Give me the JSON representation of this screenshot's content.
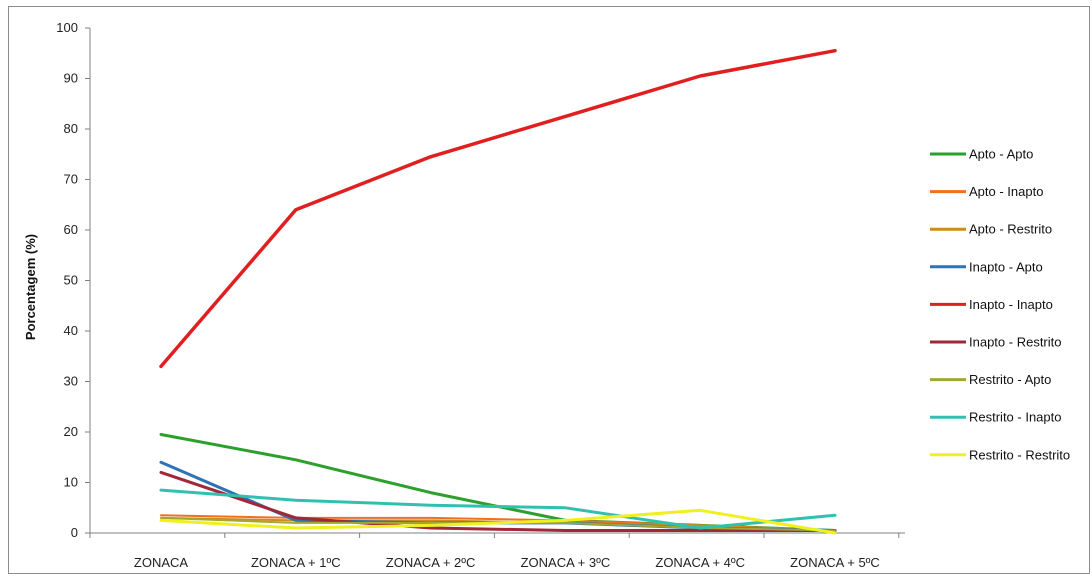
{
  "chart_data": {
    "type": "line",
    "categories": [
      "ZONACA",
      "ZONACA + 1ºC",
      "ZONACA + 2ºC",
      "ZONACA + 3ºC",
      "ZONACA + 4ºC",
      "ZONACA + 5ºC"
    ],
    "ylabel": "Porcentagem (%)",
    "xlabel": "",
    "ylim": [
      0,
      100
    ],
    "yticks": [
      0,
      10,
      20,
      30,
      40,
      50,
      60,
      70,
      80,
      90,
      100
    ],
    "grid": false,
    "legend_position": "right",
    "series": [
      {
        "name": "Apto - Apto",
        "color": "#2ca02c",
        "width": 3,
        "values": [
          19.5,
          14.5,
          8,
          2.5,
          1.5,
          0.5
        ]
      },
      {
        "name": "Apto - Inapto",
        "color": "#f07020",
        "width": 2,
        "values": [
          3.5,
          3,
          3,
          2.5,
          1.5,
          0.5
        ]
      },
      {
        "name": "Apto - Restrito",
        "color": "#d08a20",
        "width": 2,
        "values": [
          3,
          2.5,
          2.5,
          2,
          1.5,
          0.5
        ]
      },
      {
        "name": "Inapto - Apto",
        "color": "#2e74b5",
        "width": 3,
        "values": [
          14,
          2.5,
          2,
          2,
          1,
          0.5
        ]
      },
      {
        "name": "Inapto - Inapto",
        "color": "#e02020",
        "width": 3.5,
        "values": [
          33,
          64,
          74.5,
          82.5,
          90.5,
          95.5
        ]
      },
      {
        "name": "Inapto - Restrito",
        "color": "#a02838",
        "width": 3,
        "values": [
          12,
          3,
          1,
          0.5,
          0.5,
          0.5
        ]
      },
      {
        "name": "Restrito - Apto",
        "color": "#a0a830",
        "width": 2,
        "values": [
          3,
          2,
          2,
          2,
          1,
          0.5
        ]
      },
      {
        "name": "Restrito - Inapto",
        "color": "#30c0b0",
        "width": 3,
        "values": [
          8.5,
          6.5,
          5.5,
          5,
          1,
          3.5
        ]
      },
      {
        "name": "Restrito - Restrito",
        "color": "#f0f020",
        "width": 3,
        "values": [
          2.5,
          1,
          1.5,
          2.5,
          4.5,
          0
        ]
      }
    ]
  }
}
